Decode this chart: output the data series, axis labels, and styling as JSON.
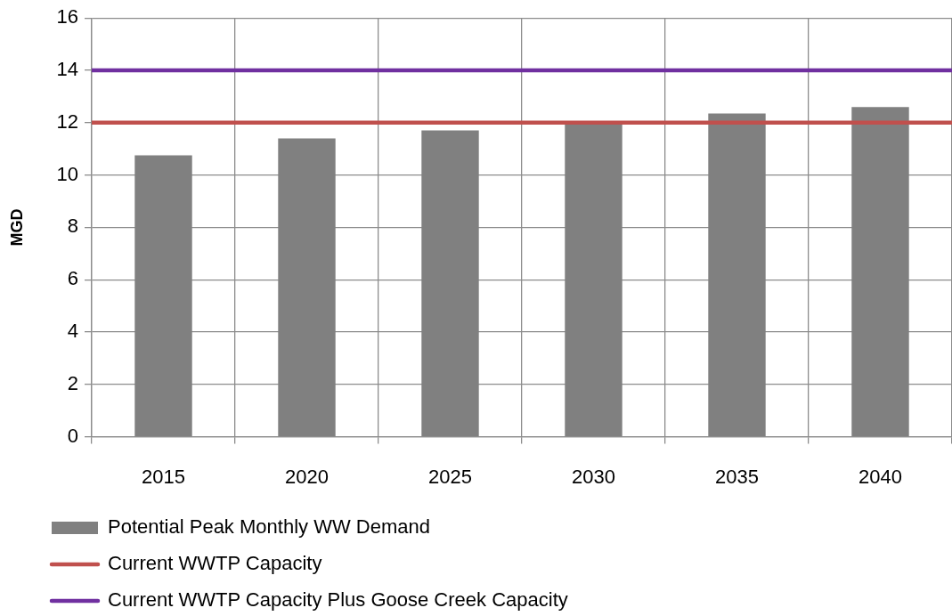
{
  "chart_data": {
    "type": "bar",
    "ylabel": "MGD",
    "categories": [
      "2015",
      "2020",
      "2025",
      "2030",
      "2035",
      "2040"
    ],
    "series": [
      {
        "name": "Potential Peak Monthly WW Demand",
        "color": "#808080",
        "values": [
          10.75,
          11.4,
          11.7,
          12,
          12.35,
          12.6
        ]
      }
    ],
    "ylim": [
      0,
      16
    ],
    "yticks": [
      0,
      2,
      4,
      6,
      8,
      10,
      12,
      14,
      16
    ],
    "grid": true,
    "legend": "bottom left",
    "ref_lines": [
      {
        "axis": "y",
        "value": 12,
        "label": "Current WWTP Capacity",
        "color": "#c0504d"
      },
      {
        "axis": "y",
        "value": 14,
        "label": "Current WWTP Capacity Plus Goose Creek Capacity",
        "color": "#7030a0"
      }
    ]
  }
}
